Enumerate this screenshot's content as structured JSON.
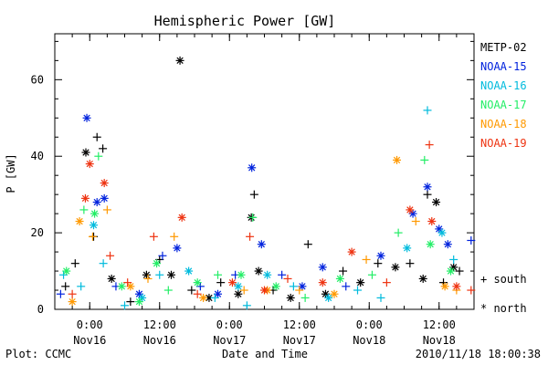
{
  "chart_data": {
    "type": "scatter",
    "title": "Hemispheric Power [GW]",
    "xlabel": "Date and Time",
    "ylabel": "P [GW]",
    "ylim": [
      0,
      72
    ],
    "xlim": [
      "2010-11-15T18:00",
      "2010-11-18T18:00"
    ],
    "grid": false,
    "legend_placement": "right",
    "yticks": [
      0,
      20,
      40,
      60
    ],
    "xticks": [
      {
        "x": "2010-11-16T00:00",
        "time": "0:00",
        "day": "Nov16"
      },
      {
        "x": "2010-11-16T12:00",
        "time": "12:00",
        "day": "Nov16"
      },
      {
        "x": "2010-11-17T00:00",
        "time": "0:00",
        "day": "Nov17"
      },
      {
        "x": "2010-11-17T12:00",
        "time": "12:00",
        "day": "Nov17"
      },
      {
        "x": "2010-11-18T00:00",
        "time": "0:00",
        "day": "Nov18"
      },
      {
        "x": "2010-11-18T12:00",
        "time": "12:00",
        "day": "Nov18"
      }
    ],
    "marker_legend": {
      "south": "+ south",
      "north": "* north"
    },
    "footer_left": "Plot: CCMC",
    "footer_right": "2010/11/18 18:00:38",
    "series": [
      {
        "name": "METP-02",
        "color": "#000000",
        "points": [
          {
            "x": "2010-11-15T19:50",
            "y": 6,
            "m": "+"
          },
          {
            "x": "2010-11-15T21:30",
            "y": 12,
            "m": "+"
          },
          {
            "x": "2010-11-15T23:20",
            "y": 41,
            "m": "*"
          },
          {
            "x": "2010-11-16T00:40",
            "y": 19,
            "m": "+"
          },
          {
            "x": "2010-11-16T01:15",
            "y": 45,
            "m": "+"
          },
          {
            "x": "2010-11-16T02:15",
            "y": 42,
            "m": "+"
          },
          {
            "x": "2010-11-16T03:45",
            "y": 8,
            "m": "*"
          },
          {
            "x": "2010-11-16T07:00",
            "y": 2,
            "m": "+"
          },
          {
            "x": "2010-11-16T09:45",
            "y": 9,
            "m": "*"
          },
          {
            "x": "2010-11-16T12:00",
            "y": 13,
            "m": "+"
          },
          {
            "x": "2010-11-16T14:00",
            "y": 9,
            "m": "*"
          },
          {
            "x": "2010-11-16T15:30",
            "y": 65,
            "m": "*"
          },
          {
            "x": "2010-11-16T17:30",
            "y": 5,
            "m": "+"
          },
          {
            "x": "2010-11-16T20:30",
            "y": 3,
            "m": "*"
          },
          {
            "x": "2010-11-16T22:30",
            "y": 7,
            "m": "+"
          },
          {
            "x": "2010-11-17T01:30",
            "y": 4,
            "m": "*"
          },
          {
            "x": "2010-11-17T03:45",
            "y": 24,
            "m": "*"
          },
          {
            "x": "2010-11-17T04:15",
            "y": 30,
            "m": "+"
          },
          {
            "x": "2010-11-17T05:00",
            "y": 10,
            "m": "*"
          },
          {
            "x": "2010-11-17T07:30",
            "y": 5,
            "m": "+"
          },
          {
            "x": "2010-11-17T10:30",
            "y": 3,
            "m": "*"
          },
          {
            "x": "2010-11-17T13:30",
            "y": 17,
            "m": "+"
          },
          {
            "x": "2010-11-17T16:30",
            "y": 4,
            "m": "*"
          },
          {
            "x": "2010-11-17T19:30",
            "y": 10,
            "m": "+"
          },
          {
            "x": "2010-11-17T22:30",
            "y": 7,
            "m": "*"
          },
          {
            "x": "2010-11-18T01:30",
            "y": 12,
            "m": "+"
          },
          {
            "x": "2010-11-18T04:30",
            "y": 11,
            "m": "*"
          },
          {
            "x": "2010-11-18T07:00",
            "y": 12,
            "m": "+"
          },
          {
            "x": "2010-11-18T09:15",
            "y": 8,
            "m": "*"
          },
          {
            "x": "2010-11-18T10:00",
            "y": 30,
            "m": "+"
          },
          {
            "x": "2010-11-18T11:30",
            "y": 28,
            "m": "*"
          },
          {
            "x": "2010-11-18T12:45",
            "y": 7,
            "m": "+"
          },
          {
            "x": "2010-11-18T14:30",
            "y": 11,
            "m": "*"
          },
          {
            "x": "2010-11-18T15:30",
            "y": 10,
            "m": "+"
          }
        ]
      },
      {
        "name": "NOAA-15",
        "color": "#0022dd",
        "points": [
          {
            "x": "2010-11-15T19:00",
            "y": 4,
            "m": "+"
          },
          {
            "x": "2010-11-15T23:30",
            "y": 50,
            "m": "*"
          },
          {
            "x": "2010-11-16T01:15",
            "y": 28,
            "m": "*"
          },
          {
            "x": "2010-11-16T02:30",
            "y": 29,
            "m": "*"
          },
          {
            "x": "2010-11-16T04:30",
            "y": 6,
            "m": "+"
          },
          {
            "x": "2010-11-16T08:30",
            "y": 4,
            "m": "*"
          },
          {
            "x": "2010-11-16T12:30",
            "y": 14,
            "m": "+"
          },
          {
            "x": "2010-11-16T15:00",
            "y": 16,
            "m": "*"
          },
          {
            "x": "2010-11-16T19:00",
            "y": 6,
            "m": "+"
          },
          {
            "x": "2010-11-16T22:00",
            "y": 4,
            "m": "*"
          },
          {
            "x": "2010-11-17T01:00",
            "y": 9,
            "m": "+"
          },
          {
            "x": "2010-11-17T03:50",
            "y": 37,
            "m": "*"
          },
          {
            "x": "2010-11-17T05:30",
            "y": 17,
            "m": "*"
          },
          {
            "x": "2010-11-17T09:00",
            "y": 9,
            "m": "+"
          },
          {
            "x": "2010-11-17T12:30",
            "y": 6,
            "m": "*"
          },
          {
            "x": "2010-11-17T16:00",
            "y": 11,
            "m": "*"
          },
          {
            "x": "2010-11-17T20:00",
            "y": 6,
            "m": "+"
          },
          {
            "x": "2010-11-18T02:00",
            "y": 14,
            "m": "*"
          },
          {
            "x": "2010-11-18T07:30",
            "y": 25,
            "m": "*"
          },
          {
            "x": "2010-11-18T10:00",
            "y": 32,
            "m": "*"
          },
          {
            "x": "2010-11-18T12:00",
            "y": 21,
            "m": "*"
          },
          {
            "x": "2010-11-18T13:30",
            "y": 17,
            "m": "*"
          },
          {
            "x": "2010-11-18T17:30",
            "y": 18,
            "m": "+"
          }
        ]
      },
      {
        "name": "NOAA-16",
        "color": "#00bbdd",
        "points": [
          {
            "x": "2010-11-15T19:30",
            "y": 9,
            "m": "+"
          },
          {
            "x": "2010-11-15T22:30",
            "y": 6,
            "m": "+"
          },
          {
            "x": "2010-11-16T00:40",
            "y": 22,
            "m": "*"
          },
          {
            "x": "2010-11-16T02:20",
            "y": 12,
            "m": "+"
          },
          {
            "x": "2010-11-16T06:00",
            "y": 1,
            "m": "+"
          },
          {
            "x": "2010-11-16T09:00",
            "y": 3,
            "m": "*"
          },
          {
            "x": "2010-11-16T12:00",
            "y": 9,
            "m": "+"
          },
          {
            "x": "2010-11-16T17:00",
            "y": 10,
            "m": "*"
          },
          {
            "x": "2010-11-16T21:30",
            "y": 3,
            "m": "+"
          },
          {
            "x": "2010-11-17T01:30",
            "y": 6,
            "m": "*"
          },
          {
            "x": "2010-11-17T03:00",
            "y": 1,
            "m": "+"
          },
          {
            "x": "2010-11-17T06:30",
            "y": 9,
            "m": "*"
          },
          {
            "x": "2010-11-17T11:00",
            "y": 6,
            "m": "+"
          },
          {
            "x": "2010-11-17T17:00",
            "y": 3,
            "m": "*"
          },
          {
            "x": "2010-11-17T22:00",
            "y": 5,
            "m": "+"
          },
          {
            "x": "2010-11-18T02:00",
            "y": 3,
            "m": "+"
          },
          {
            "x": "2010-11-18T06:30",
            "y": 16,
            "m": "*"
          },
          {
            "x": "2010-11-18T10:00",
            "y": 52,
            "m": "+"
          },
          {
            "x": "2010-11-18T12:30",
            "y": 20,
            "m": "*"
          },
          {
            "x": "2010-11-18T14:30",
            "y": 13,
            "m": "+"
          }
        ]
      },
      {
        "name": "NOAA-17",
        "color": "#22ee66",
        "points": [
          {
            "x": "2010-11-15T20:00",
            "y": 10,
            "m": "*"
          },
          {
            "x": "2010-11-15T23:00",
            "y": 26,
            "m": "+"
          },
          {
            "x": "2010-11-16T00:50",
            "y": 25,
            "m": "*"
          },
          {
            "x": "2010-11-16T01:30",
            "y": 40,
            "m": "+"
          },
          {
            "x": "2010-11-16T05:30",
            "y": 6,
            "m": "*"
          },
          {
            "x": "2010-11-16T08:30",
            "y": 2,
            "m": "*"
          },
          {
            "x": "2010-11-16T11:30",
            "y": 12,
            "m": "*"
          },
          {
            "x": "2010-11-16T13:30",
            "y": 5,
            "m": "+"
          },
          {
            "x": "2010-11-16T18:30",
            "y": 7,
            "m": "*"
          },
          {
            "x": "2010-11-16T22:00",
            "y": 9,
            "m": "+"
          },
          {
            "x": "2010-11-17T02:00",
            "y": 9,
            "m": "*"
          },
          {
            "x": "2010-11-17T04:00",
            "y": 24,
            "m": "+"
          },
          {
            "x": "2010-11-17T08:00",
            "y": 6,
            "m": "*"
          },
          {
            "x": "2010-11-17T13:00",
            "y": 3,
            "m": "+"
          },
          {
            "x": "2010-11-17T19:00",
            "y": 8,
            "m": "*"
          },
          {
            "x": "2010-11-18T00:30",
            "y": 9,
            "m": "+"
          },
          {
            "x": "2010-11-18T05:00",
            "y": 20,
            "m": "+"
          },
          {
            "x": "2010-11-18T09:30",
            "y": 39,
            "m": "+"
          },
          {
            "x": "2010-11-18T10:30",
            "y": 17,
            "m": "*"
          },
          {
            "x": "2010-11-18T14:00",
            "y": 10,
            "m": "*"
          }
        ]
      },
      {
        "name": "NOAA-18",
        "color": "#ff9900",
        "points": [
          {
            "x": "2010-11-15T21:00",
            "y": 2,
            "m": "*"
          },
          {
            "x": "2010-11-15T22:15",
            "y": 23,
            "m": "*"
          },
          {
            "x": "2010-11-16T00:30",
            "y": 19,
            "m": "+"
          },
          {
            "x": "2010-11-16T03:00",
            "y": 26,
            "m": "+"
          },
          {
            "x": "2010-11-16T07:00",
            "y": 6,
            "m": "*"
          },
          {
            "x": "2010-11-16T10:00",
            "y": 8,
            "m": "+"
          },
          {
            "x": "2010-11-16T14:30",
            "y": 19,
            "m": "+"
          },
          {
            "x": "2010-11-16T19:30",
            "y": 3,
            "m": "*"
          },
          {
            "x": "2010-11-17T02:30",
            "y": 5,
            "m": "+"
          },
          {
            "x": "2010-11-17T06:30",
            "y": 5,
            "m": "*"
          },
          {
            "x": "2010-11-17T12:00",
            "y": 5,
            "m": "+"
          },
          {
            "x": "2010-11-17T18:00",
            "y": 4,
            "m": "*"
          },
          {
            "x": "2010-11-17T23:30",
            "y": 13,
            "m": "+"
          },
          {
            "x": "2010-11-18T04:45",
            "y": 39,
            "m": "*"
          },
          {
            "x": "2010-11-18T08:00",
            "y": 23,
            "m": "+"
          },
          {
            "x": "2010-11-18T13:00",
            "y": 6,
            "m": "*"
          },
          {
            "x": "2010-11-18T15:00",
            "y": 5,
            "m": "+"
          }
        ]
      },
      {
        "name": "NOAA-19",
        "color": "#ee3311",
        "points": [
          {
            "x": "2010-11-15T21:00",
            "y": 4,
            "m": "+"
          },
          {
            "x": "2010-11-15T23:15",
            "y": 29,
            "m": "*"
          },
          {
            "x": "2010-11-16T00:00",
            "y": 38,
            "m": "*"
          },
          {
            "x": "2010-11-16T02:30",
            "y": 33,
            "m": "*"
          },
          {
            "x": "2010-11-16T03:30",
            "y": 14,
            "m": "+"
          },
          {
            "x": "2010-11-16T06:30",
            "y": 7,
            "m": "+"
          },
          {
            "x": "2010-11-16T11:00",
            "y": 19,
            "m": "+"
          },
          {
            "x": "2010-11-16T15:50",
            "y": 24,
            "m": "*"
          },
          {
            "x": "2010-11-16T18:30",
            "y": 4,
            "m": "+"
          },
          {
            "x": "2010-11-17T00:30",
            "y": 7,
            "m": "*"
          },
          {
            "x": "2010-11-17T03:30",
            "y": 19,
            "m": "+"
          },
          {
            "x": "2010-11-17T06:00",
            "y": 5,
            "m": "*"
          },
          {
            "x": "2010-11-17T10:00",
            "y": 8,
            "m": "+"
          },
          {
            "x": "2010-11-17T16:00",
            "y": 7,
            "m": "*"
          },
          {
            "x": "2010-11-17T21:00",
            "y": 15,
            "m": "*"
          },
          {
            "x": "2010-11-18T03:00",
            "y": 7,
            "m": "+"
          },
          {
            "x": "2010-11-18T07:00",
            "y": 26,
            "m": "*"
          },
          {
            "x": "2010-11-18T10:20",
            "y": 43,
            "m": "+"
          },
          {
            "x": "2010-11-18T10:45",
            "y": 23,
            "m": "*"
          },
          {
            "x": "2010-11-18T15:00",
            "y": 6,
            "m": "*"
          },
          {
            "x": "2010-11-18T17:30",
            "y": 5,
            "m": "+"
          }
        ]
      }
    ]
  }
}
